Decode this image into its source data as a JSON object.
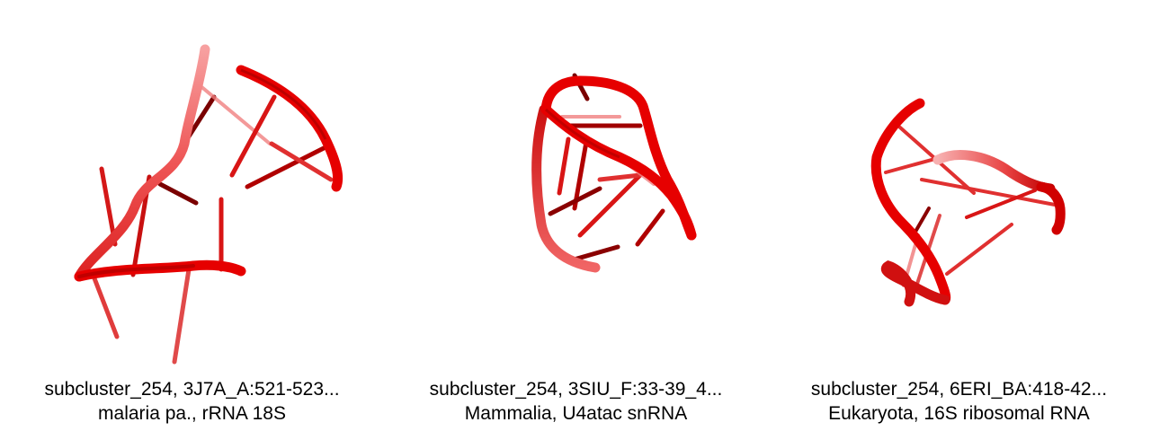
{
  "colors": {
    "strand": "#e60000",
    "strand_light": "#f06060",
    "strand_dark": "#8a0000",
    "background": "#ffffff"
  },
  "panels": [
    {
      "title": "subcluster_254, 3J7A_A:521-523...",
      "subtitle": "malaria pa., rRNA 18S"
    },
    {
      "title": "subcluster_254, 3SIU_F:33-39_4...",
      "subtitle": "Mammalia, U4atac snRNA"
    },
    {
      "title": "subcluster_254, 6ERI_BA:418-42...",
      "subtitle": "Eukaryota, 16S ribosomal RNA"
    }
  ]
}
